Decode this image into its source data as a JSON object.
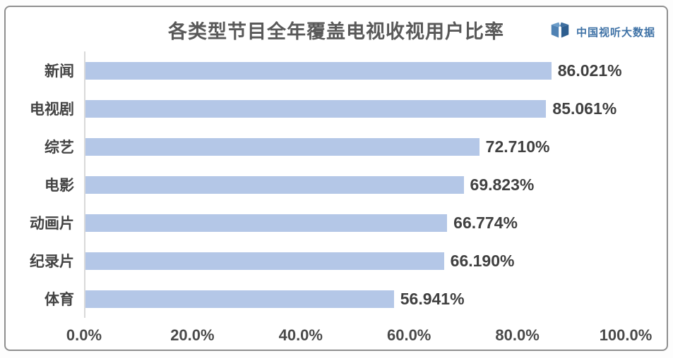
{
  "page": {
    "background": "#ffffff",
    "card_border_color": "#8f8f8f"
  },
  "header": {
    "title": "各类型节目全年覆盖电视收视用户比率",
    "logo": {
      "text": "中国视听大数据",
      "icon": "open-book-logo-icon",
      "text_color": "#3f72a6"
    }
  },
  "chart_data": {
    "type": "bar",
    "orientation": "horizontal",
    "title": "各类型节目全年覆盖电视收视用户比率",
    "categories": [
      "新闻",
      "电视剧",
      "综艺",
      "电影",
      "动画片",
      "纪录片",
      "体育"
    ],
    "values": [
      86.021,
      85.061,
      72.71,
      69.823,
      66.774,
      66.19,
      56.941
    ],
    "value_labels": [
      "86.021%",
      "85.061%",
      "72.710%",
      "69.823%",
      "66.774%",
      "66.190%",
      "56.941%"
    ],
    "x_tick_labels": [
      "0.0%",
      "20.0%",
      "40.0%",
      "60.0%",
      "80.0%",
      "100.0%"
    ],
    "x_tick_values": [
      0,
      20,
      40,
      60,
      80,
      100
    ],
    "xlim": [
      0,
      100
    ],
    "bar_color": "#b4c7e7",
    "axis_line_color": "#d9d9d9",
    "label_color": "#434343",
    "grid": false,
    "legend": false,
    "value_label_position": "right-of-bar"
  }
}
